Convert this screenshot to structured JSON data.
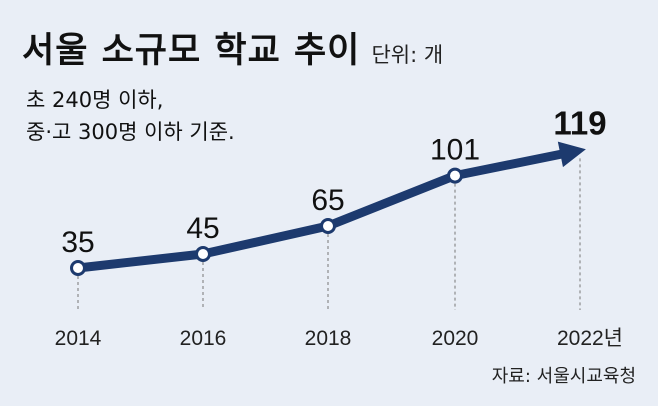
{
  "header": {
    "title": "서울 소규모 학교 추이",
    "unit": "단위: 개"
  },
  "note": {
    "line1": "초 240명 이하,",
    "line2": "중·고 300명 이하 기준."
  },
  "source": "자료: 서울시교육청",
  "colors": {
    "line": "#1d3a6e",
    "background": "#e9eef6"
  },
  "chart_data": {
    "type": "line",
    "title": "서울 소규모 학교 추이",
    "x": [
      "2014",
      "2016",
      "2018",
      "2020",
      "2022년"
    ],
    "values": [
      35,
      45,
      65,
      101,
      119
    ],
    "ylabel": "",
    "xlabel": "",
    "grid": false,
    "legend": "none"
  }
}
